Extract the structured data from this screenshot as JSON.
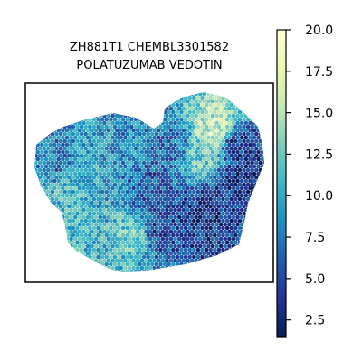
{
  "chart_data": {
    "type": "heatmap",
    "title_lines": [
      "ZH881T1 CHEMBL3301582",
      "POLATUZUMAB VEDOTIN"
    ],
    "colorbar": {
      "min": 1.5,
      "max": 20.0,
      "ticks": [
        2.5,
        5.0,
        7.5,
        10.0,
        12.5,
        15.0,
        17.5,
        20.0
      ],
      "tick_labels": [
        "2.5",
        "5.0",
        "7.5",
        "10.0",
        "12.5",
        "15.0",
        "17.5",
        "20.0"
      ],
      "colormap": "YlGnBu",
      "colormap_stops": [
        "#081d58",
        "#253494",
        "#225ea8",
        "#1d91c0",
        "#41b6c4",
        "#7fcdbb",
        "#c7e9b4",
        "#edf8b1",
        "#ffffd9"
      ]
    },
    "regions": [
      {
        "x": 0.22,
        "y": 0.38,
        "value": 10.0
      },
      {
        "x": 0.38,
        "y": 0.32,
        "value": 8.5
      },
      {
        "x": 0.28,
        "y": 0.58,
        "value": 9.5
      },
      {
        "x": 0.18,
        "y": 0.6,
        "value": 11.0
      },
      {
        "x": 0.42,
        "y": 0.78,
        "value": 12.0
      },
      {
        "x": 0.3,
        "y": 0.82,
        "value": 10.5
      },
      {
        "x": 0.5,
        "y": 0.52,
        "value": 6.0
      },
      {
        "x": 0.55,
        "y": 0.75,
        "value": 5.0
      },
      {
        "x": 0.7,
        "y": 0.7,
        "value": 4.0
      },
      {
        "x": 0.78,
        "y": 0.22,
        "value": 15.5
      },
      {
        "x": 0.72,
        "y": 0.35,
        "value": 12.0
      },
      {
        "x": 0.88,
        "y": 0.3,
        "value": 4.5
      },
      {
        "x": 0.92,
        "y": 0.5,
        "value": 3.0
      },
      {
        "x": 0.6,
        "y": 0.3,
        "value": 7.0
      },
      {
        "x": 0.1,
        "y": 0.35,
        "value": 7.5
      },
      {
        "x": 0.85,
        "y": 0.6,
        "value": 4.0
      }
    ]
  }
}
